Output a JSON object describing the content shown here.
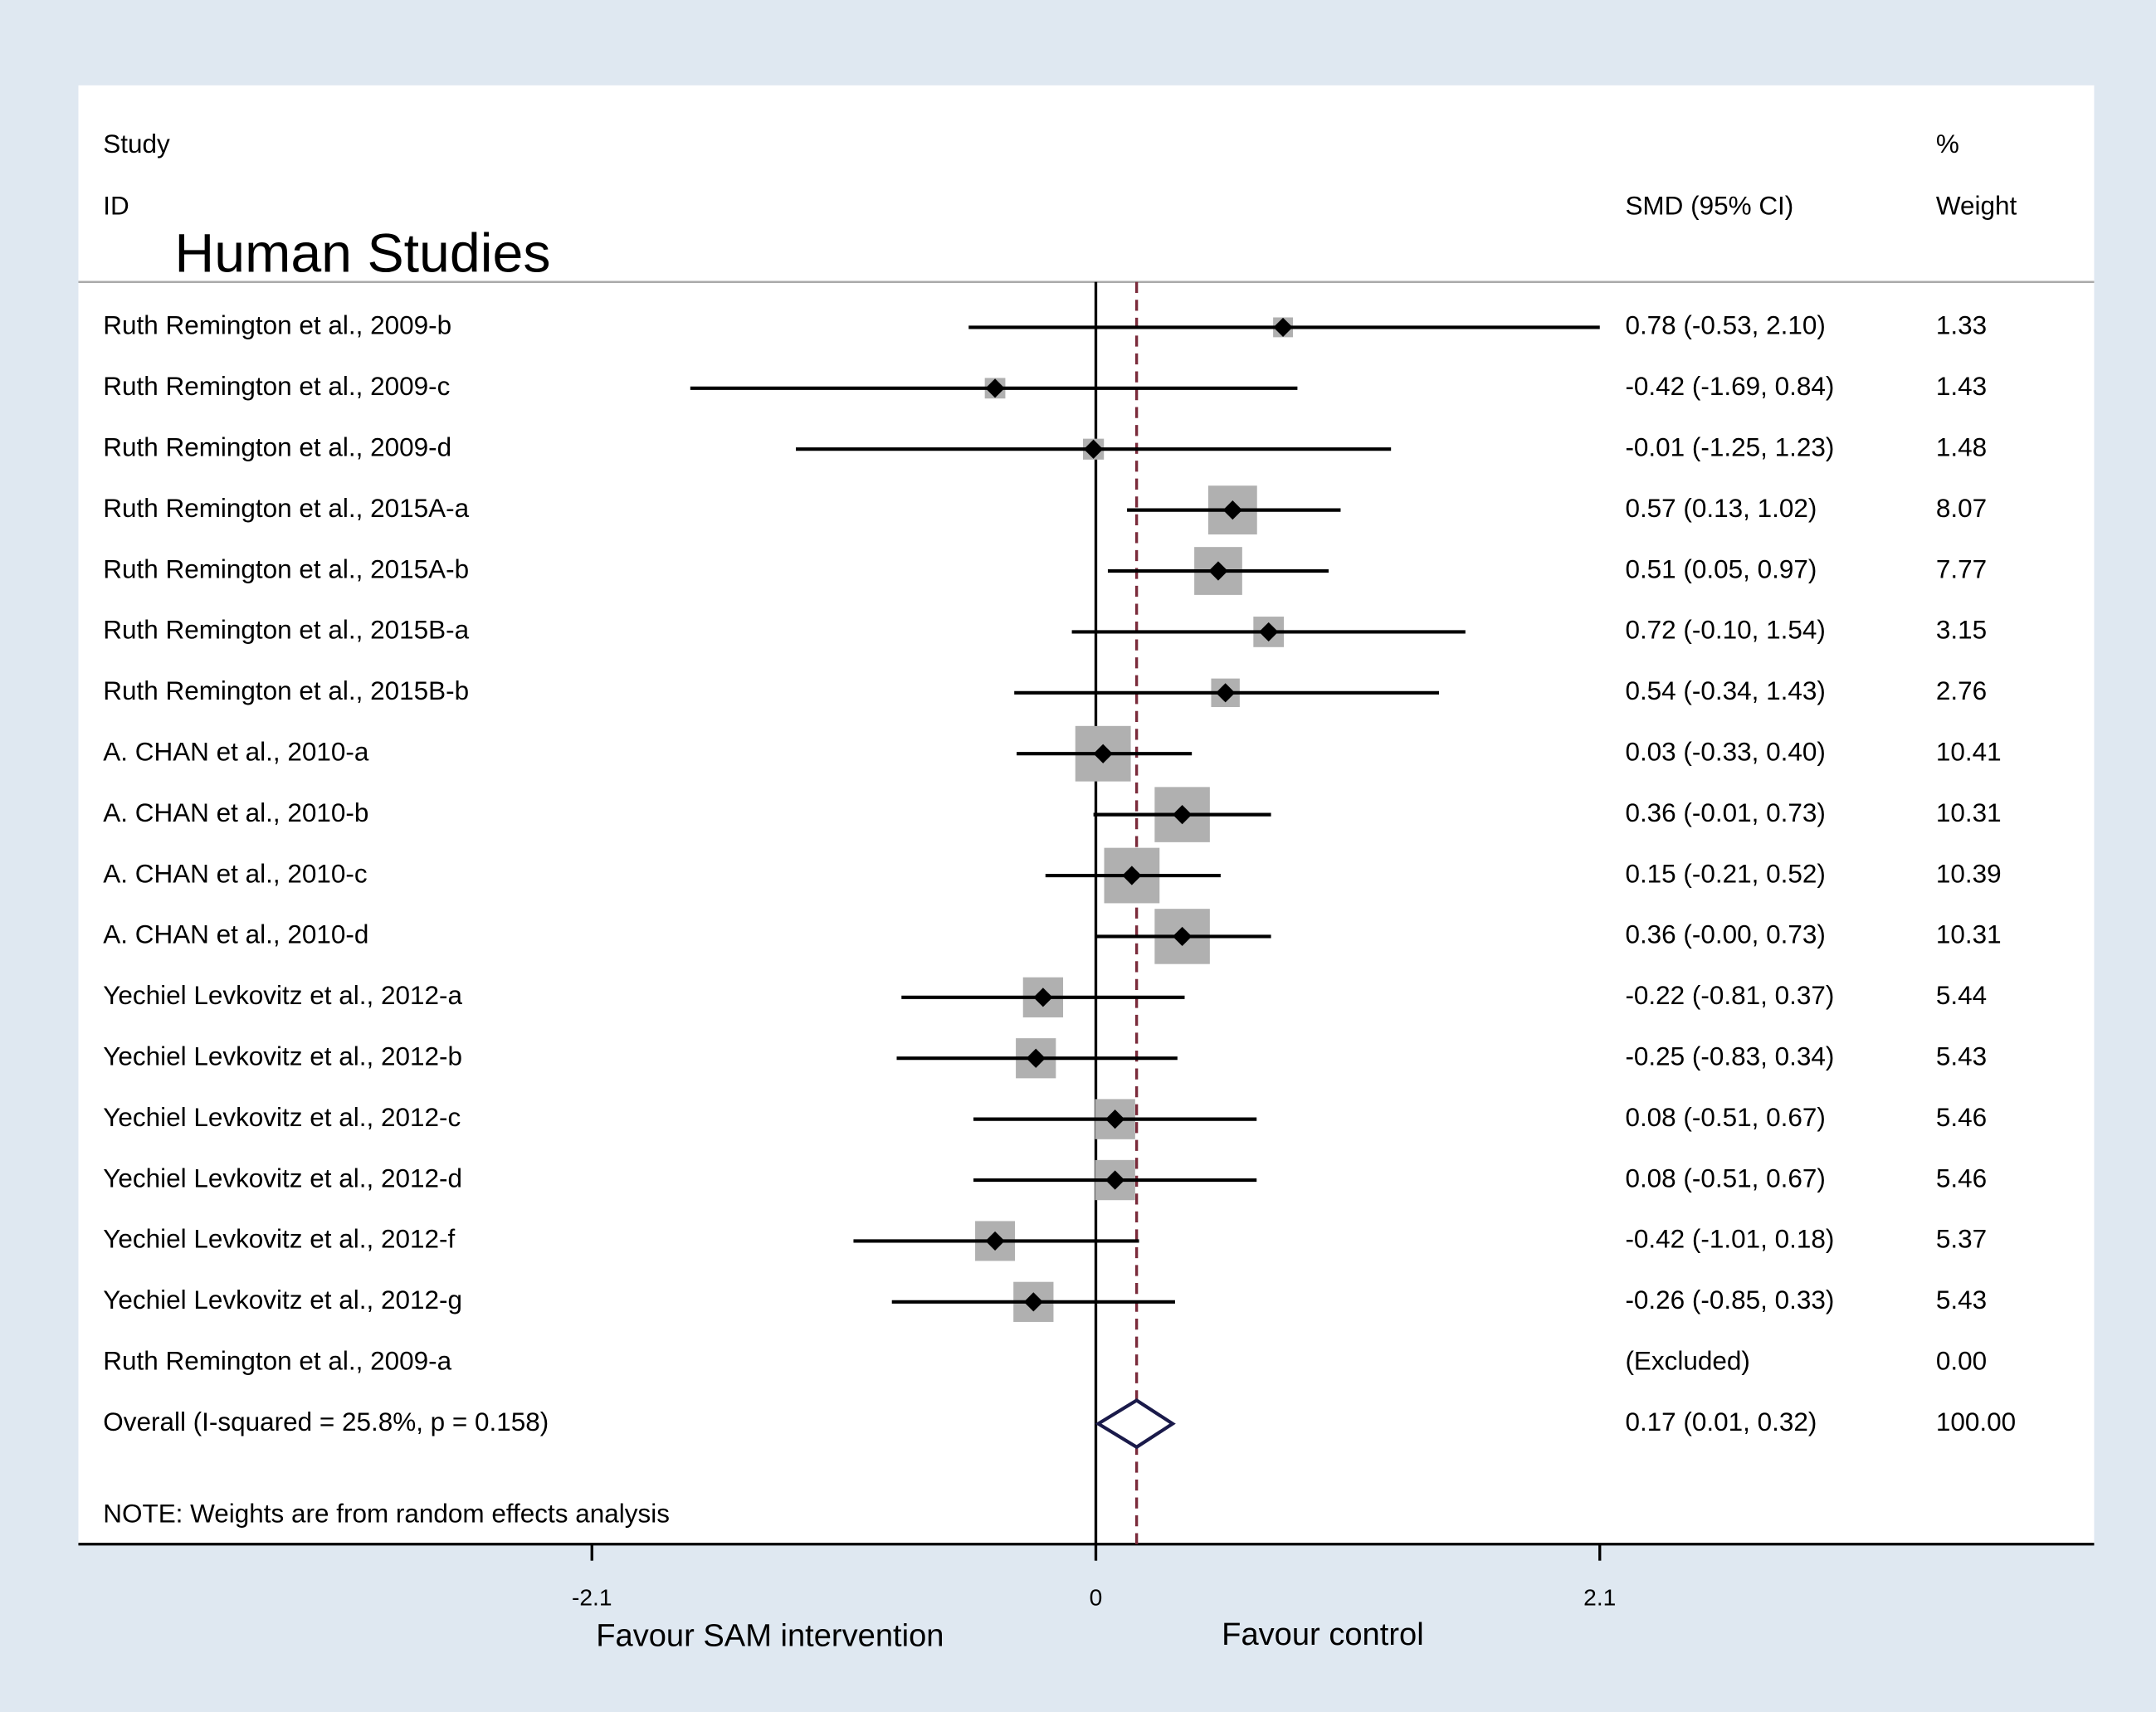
{
  "chart_data": {
    "type": "forest",
    "title": "Human Studies",
    "header": {
      "study": "Study",
      "id": "ID",
      "effect": "SMD (95% CI)",
      "pct": "%",
      "weight": "Weight"
    },
    "categories": [
      "Ruth Remington et al., 2009-b",
      "Ruth Remington et al., 2009-c",
      "Ruth Remington et al., 2009-d",
      "Ruth Remington et al., 2015A-a",
      "Ruth Remington et al., 2015A-b",
      "Ruth Remington et al., 2015B-a",
      "Ruth Remington et al., 2015B-b",
      "A. CHAN et al., 2010-a",
      "A. CHAN et al., 2010-b",
      "A. CHAN et al., 2010-c",
      "A. CHAN et al., 2010-d",
      "Yechiel Levkovitz et al., 2012-a",
      "Yechiel Levkovitz et al., 2012-b",
      "Yechiel Levkovitz et al., 2012-c",
      "Yechiel Levkovitz et al., 2012-d",
      "Yechiel Levkovitz et al., 2012-f",
      "Yechiel Levkovitz et al., 2012-g",
      "Ruth Remington et al., 2009-a"
    ],
    "estimates": [
      0.78,
      -0.42,
      -0.01,
      0.57,
      0.51,
      0.72,
      0.54,
      0.03,
      0.36,
      0.15,
      0.36,
      -0.22,
      -0.25,
      0.08,
      0.08,
      -0.42,
      -0.26,
      null
    ],
    "lower": [
      -0.53,
      -1.69,
      -1.25,
      0.13,
      0.05,
      -0.1,
      -0.34,
      -0.33,
      -0.01,
      -0.21,
      0.0,
      -0.81,
      -0.83,
      -0.51,
      -0.51,
      -1.01,
      -0.85,
      null
    ],
    "upper": [
      2.1,
      0.84,
      1.23,
      1.02,
      0.97,
      1.54,
      1.43,
      0.4,
      0.73,
      0.52,
      0.73,
      0.37,
      0.34,
      0.67,
      0.67,
      0.18,
      0.33,
      null
    ],
    "ci_labels": [
      "0.78 (-0.53, 2.10)",
      "-0.42 (-1.69, 0.84)",
      "-0.01 (-1.25, 1.23)",
      "0.57 (0.13, 1.02)",
      "0.51 (0.05, 0.97)",
      "0.72 (-0.10, 1.54)",
      "0.54 (-0.34, 1.43)",
      "0.03 (-0.33, 0.40)",
      "0.36 (-0.01, 0.73)",
      "0.15 (-0.21, 0.52)",
      "0.36 (-0.00, 0.73)",
      "-0.22 (-0.81, 0.37)",
      "-0.25 (-0.83, 0.34)",
      "0.08 (-0.51, 0.67)",
      "0.08 (-0.51, 0.67)",
      "-0.42 (-1.01, 0.18)",
      "-0.26 (-0.85, 0.33)",
      "(Excluded)"
    ],
    "weights": [
      1.33,
      1.43,
      1.48,
      8.07,
      7.77,
      3.15,
      2.76,
      10.41,
      10.31,
      10.39,
      10.31,
      5.44,
      5.43,
      5.46,
      5.46,
      5.37,
      5.43,
      0
    ],
    "weight_labels": [
      "1.33",
      "1.43",
      "1.48",
      "8.07",
      "7.77",
      "3.15",
      "2.76",
      "10.41",
      "10.31",
      "10.39",
      "10.31",
      "5.44",
      "5.43",
      "5.46",
      "5.46",
      "5.37",
      "5.43",
      "0.00"
    ],
    "overall": {
      "label": "Overall  (I-squared = 25.8%, p = 0.158)",
      "estimate": 0.17,
      "lower": 0.01,
      "upper": 0.32,
      "ci_label": "0.17 (0.01, 0.32)",
      "weight": 100,
      "weight_label": "100.00"
    },
    "note": "NOTE: Weights are from random effects analysis",
    "xlim": [
      -4.24,
      4.16
    ],
    "xticks": [
      {
        "value": -2.1,
        "label": "-2.1"
      },
      0,
      2.1
    ],
    "x_labels": [
      "Favour SAM intervention",
      "Favour control"
    ]
  }
}
